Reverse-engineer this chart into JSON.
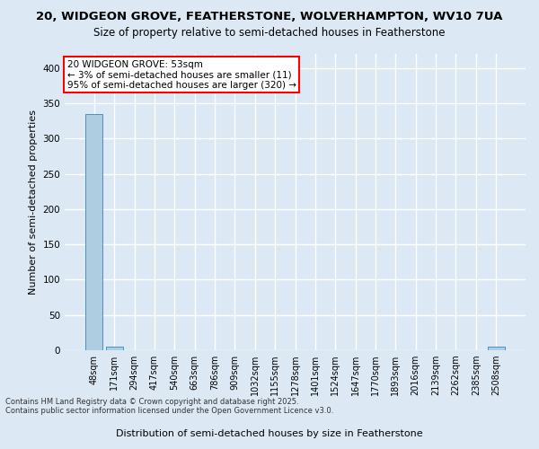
{
  "title1": "20, WIDGEON GROVE, FEATHERSTONE, WOLVERHAMPTON, WV10 7UA",
  "title2": "Size of property relative to semi-detached houses in Featherstone",
  "xlabel": "Distribution of semi-detached houses by size in Featherstone",
  "ylabel": "Number of semi-detached properties",
  "categories": [
    "48sqm",
    "171sqm",
    "294sqm",
    "417sqm",
    "540sqm",
    "663sqm",
    "786sqm",
    "909sqm",
    "1032sqm",
    "1155sqm",
    "1278sqm",
    "1401sqm",
    "1524sqm",
    "1647sqm",
    "1770sqm",
    "1893sqm",
    "2016sqm",
    "2139sqm",
    "2262sqm",
    "2385sqm",
    "2508sqm"
  ],
  "values": [
    335,
    5,
    0,
    0,
    0,
    0,
    0,
    0,
    0,
    0,
    0,
    0,
    0,
    0,
    0,
    0,
    0,
    0,
    0,
    0,
    5
  ],
  "bar_color": "#aecde1",
  "bar_edge_color": "#4a90c4",
  "ylim": [
    0,
    420
  ],
  "yticks": [
    0,
    50,
    100,
    150,
    200,
    250,
    300,
    350,
    400
  ],
  "annotation_text": "20 WIDGEON GROVE: 53sqm\n← 3% of semi-detached houses are smaller (11)\n95% of semi-detached houses are larger (320) →",
  "footer1": "Contains HM Land Registry data © Crown copyright and database right 2025.",
  "footer2": "Contains public sector information licensed under the Open Government Licence v3.0.",
  "background_color": "#dce9f5",
  "grid_color": "#ffffff",
  "title_fontsize": 9.5,
  "subtitle_fontsize": 8.5,
  "tick_fontsize": 7,
  "ylabel_fontsize": 8,
  "xlabel_fontsize": 8,
  "footer_fontsize": 6,
  "annot_fontsize": 7.5
}
